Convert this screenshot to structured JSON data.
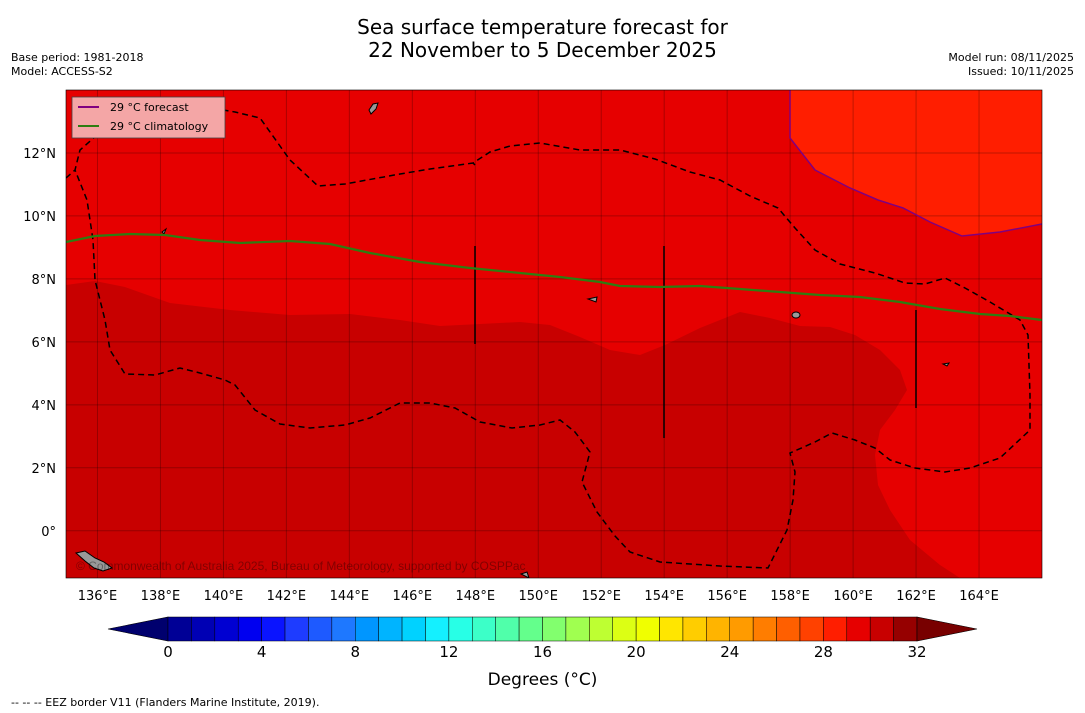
{
  "header": {
    "title_line1": "Sea surface temperature forecast for",
    "title_line2": "22 November to 5 December 2025",
    "base_period": "Base period: 1981-2018",
    "model": "Model: ACCESS-S2",
    "model_run": "Model run: 08/11/2025",
    "issued": "Issued: 10/11/2025"
  },
  "legend": {
    "forecast_label": "29 °C  forecast",
    "climatology_label": "29 °C  climatology",
    "forecast_color": "#800080",
    "climatology_color": "#2e7d11"
  },
  "map": {
    "region": "Western Pacific",
    "lon_range": [
      135,
      166
    ],
    "lat_range": [
      -1.5,
      14
    ],
    "lon_ticks": [
      "136°E",
      "138°E",
      "140°E",
      "142°E",
      "144°E",
      "146°E",
      "148°E",
      "150°E",
      "152°E",
      "154°E",
      "156°E",
      "158°E",
      "160°E",
      "162°E",
      "164°E"
    ],
    "lat_ticks": [
      "12°N",
      "10°N",
      "8°N",
      "6°N",
      "4°N",
      "2°N",
      "0°"
    ],
    "colors": {
      "band_31_32": "#c80000",
      "band_30_31": "#e60000",
      "band_29_30": "#ff1e00"
    },
    "credit": "© Commonwealth of Australia 2025, Bureau of Meteorology, supported by COSPPac"
  },
  "colorbar": {
    "label": "Degrees (°C)",
    "tick_labels": [
      "0",
      "4",
      "8",
      "12",
      "16",
      "20",
      "24",
      "28",
      "32"
    ],
    "colors": [
      "#000096",
      "#0000b4",
      "#0000d2",
      "#0000f0",
      "#0a14ff",
      "#1e3cff",
      "#1e5aff",
      "#1e78ff",
      "#0096ff",
      "#00b4ff",
      "#00d2ff",
      "#14f0ff",
      "#28ffe6",
      "#3cffc8",
      "#50ffaa",
      "#64ff8c",
      "#82ff6e",
      "#a0ff50",
      "#beff32",
      "#dcff14",
      "#f0ff00",
      "#ffe600",
      "#ffcd00",
      "#ffb400",
      "#ff9b00",
      "#ff7d00",
      "#ff5f00",
      "#ff4100",
      "#ff1e00",
      "#e60000",
      "#c80000",
      "#960000"
    ],
    "under_color": "#00006e",
    "over_color": "#780000"
  },
  "footer": {
    "eez_note": "--  --  -- EEZ border V11 (Flanders Marine Institute, 2019)."
  }
}
